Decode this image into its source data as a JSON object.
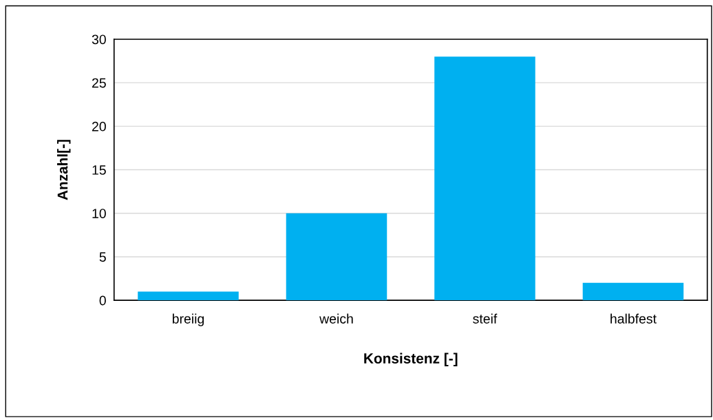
{
  "chart_data": {
    "type": "bar",
    "xlabel": "Konsistenz [-]",
    "ylabel": "Anzahl[-]",
    "categories": [
      "breiig",
      "weich",
      "steif",
      "halbfest"
    ],
    "values": [
      1,
      10,
      28,
      2
    ],
    "color": "#00b0f0",
    "ylim": [
      0,
      30
    ],
    "yticks": [
      0,
      5,
      10,
      15,
      20,
      25,
      30
    ],
    "grid": "y",
    "legend": false
  }
}
